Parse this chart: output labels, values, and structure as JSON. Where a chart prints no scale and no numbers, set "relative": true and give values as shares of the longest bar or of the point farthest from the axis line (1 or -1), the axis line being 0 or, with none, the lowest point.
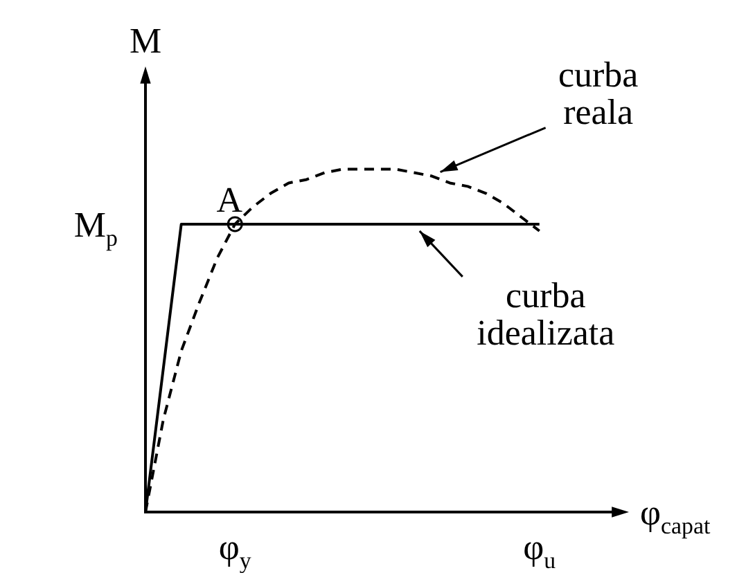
{
  "chart_data": {
    "type": "line",
    "relative": true,
    "xlabel": "φ$_{capat}$",
    "ylabel": "M",
    "categories": [
      null,
      null,
      null,
      null,
      null,
      "φ$_{y}$",
      null,
      null,
      null,
      null,
      null,
      null,
      null,
      null,
      null,
      null,
      null,
      null,
      null,
      null,
      null,
      null,
      "φ$_{u}$",
      null,
      null,
      null,
      null,
      null
    ],
    "series": [
      {
        "color": "#000000",
        "line_style": "solid",
        "marker": "none",
        "values": [
          0,
          0.42,
          0.84,
          0.84,
          0.84,
          0.84,
          0.84,
          0.84,
          0.84,
          0.84,
          0.84,
          0.84,
          0.84,
          0.84,
          0.84,
          0.84,
          0.84,
          0.84,
          0.84,
          0.84,
          0.84,
          0.84,
          0.84,
          null,
          null,
          null,
          null,
          null
        ]
      },
      {
        "color": "#000000",
        "line_style": "dashed",
        "marker": "none",
        "values": [
          0,
          0.27,
          0.47,
          0.61,
          0.74,
          0.84,
          0.89,
          0.93,
          0.96,
          0.97,
          0.99,
          1.0,
          1.0,
          1.0,
          1.0,
          0.99,
          0.98,
          0.96,
          0.95,
          0.93,
          0.9,
          0.86,
          0.82,
          null,
          null,
          null,
          null,
          null
        ]
      },
      {
        "type": "scatter",
        "color": "#000000",
        "marker": "circle",
        "values": [
          null,
          null,
          null,
          null,
          null,
          0.84,
          null,
          null,
          null,
          null,
          null,
          null,
          null,
          null,
          null,
          null,
          null,
          null,
          null,
          null,
          null,
          null,
          null,
          null,
          null,
          null,
          null,
          null
        ]
      }
    ],
    "annotations": [
      "M$_{p}$",
      {
        "text": "A",
        "x": "φ$_{y}$",
        "y": 0.84
      },
      "curba reala",
      "curba idealizata"
    ],
    "grid": false,
    "legend": false
  }
}
